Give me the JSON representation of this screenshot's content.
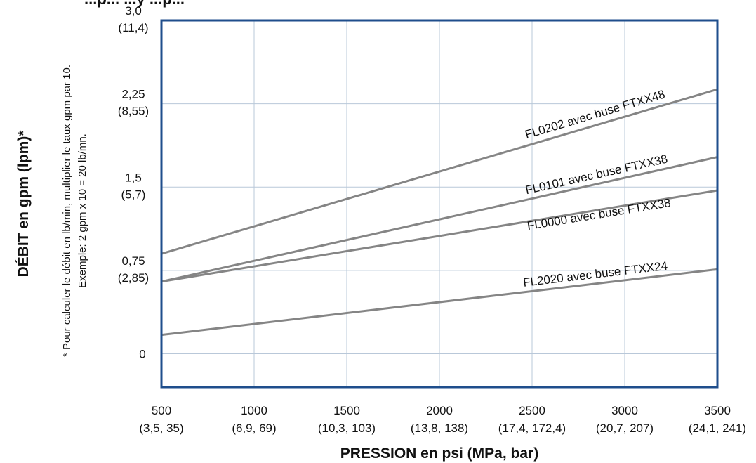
{
  "chart_data": {
    "type": "line",
    "title_fragment": "...p... ...y ...p...",
    "xlabel": "PRESSION en psi (MPa, bar)",
    "ylabel": "DÉBIT en gpm (lpm)*",
    "note_lines": [
      "* Pour calculer le débit en lb/min, multiplier le taux gpm par 10.",
      "Exemple: 2 gpm x 10 = 20 lb/mn."
    ],
    "xlim": [
      500,
      3500
    ],
    "ylim": [
      -0.3,
      3.0
    ],
    "x_ticks": [
      {
        "value": 500,
        "label": "500",
        "sublabel": "(3,5, 35)"
      },
      {
        "value": 1000,
        "label": "1000",
        "sublabel": "(6,9, 69)"
      },
      {
        "value": 1500,
        "label": "1500",
        "sublabel": "(10,3, 103)"
      },
      {
        "value": 2000,
        "label": "2000",
        "sublabel": "(13,8, 138)"
      },
      {
        "value": 2500,
        "label": "2500",
        "sublabel": "(17,4, 172,4)"
      },
      {
        "value": 3000,
        "label": "3000",
        "sublabel": "(20,7, 207)"
      },
      {
        "value": 3500,
        "label": "3500",
        "sublabel": "(24,1, 241)"
      }
    ],
    "y_ticks": [
      {
        "value": 0,
        "label": "0",
        "sublabel": ""
      },
      {
        "value": 0.75,
        "label": "0,75",
        "sublabel": "(2,85)"
      },
      {
        "value": 1.5,
        "label": "1,5",
        "sublabel": "(5,7)"
      },
      {
        "value": 2.25,
        "label": "2,25",
        "sublabel": "(8,55)"
      },
      {
        "value": 3.0,
        "label": "3,0",
        "sublabel": "(11,4)"
      }
    ],
    "grid": true,
    "series": [
      {
        "name": "FL0202 avec buse FTXX48",
        "x": [
          500,
          3500
        ],
        "y": [
          0.9,
          2.38
        ]
      },
      {
        "name": "FL0101 avec buse FTXX38",
        "x": [
          500,
          3500
        ],
        "y": [
          0.65,
          1.77
        ]
      },
      {
        "name": "FL0000 avec buse FTXX38",
        "x": [
          500,
          3500
        ],
        "y": [
          0.65,
          1.47
        ]
      },
      {
        "name": "FL2020 avec buse FTXX24",
        "x": [
          500,
          3500
        ],
        "y": [
          0.17,
          0.76
        ]
      }
    ]
  },
  "colors": {
    "frame": "#1f4e8c",
    "grid": "#b9c8d9",
    "series_line": "#858585",
    "text": "#111111",
    "background": "#ffffff"
  }
}
